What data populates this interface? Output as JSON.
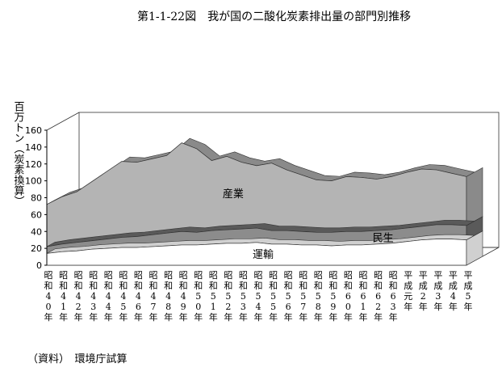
{
  "chart_data": {
    "type": "area",
    "title": "第1-1-22図　我が国の二酸化炭素排出量の部門別推移",
    "ylabel": "百万トン（炭素換算）",
    "xlabel": "",
    "ylim": [
      0,
      160
    ],
    "yticks": [
      0,
      20,
      40,
      60,
      80,
      100,
      120,
      140,
      160
    ],
    "stacked": true,
    "three_d": true,
    "grid": false,
    "categories": [
      "昭和40年",
      "昭和41年",
      "昭和42年",
      "昭和43年",
      "昭和44年",
      "昭和45年",
      "昭和46年",
      "昭和47年",
      "昭和48年",
      "昭和49年",
      "昭和50年",
      "昭和51年",
      "昭和52年",
      "昭和53年",
      "昭和54年",
      "昭和55年",
      "昭和56年",
      "昭和57年",
      "昭和58年",
      "昭和59年",
      "昭和60年",
      "昭和61年",
      "昭和62年",
      "昭和63年",
      "平成元年",
      "平成2年",
      "平成3年",
      "平成4年",
      "平成5年"
    ],
    "series": [
      {
        "name": "運輸",
        "color": "#ffffff",
        "values": [
          14,
          16,
          17,
          19,
          20,
          21,
          21,
          22,
          23,
          24,
          24,
          25,
          26,
          26,
          27,
          25,
          25,
          24,
          24,
          23,
          24,
          24,
          25,
          26,
          28,
          30,
          31,
          31,
          30
        ]
      },
      {
        "name": "民生",
        "color": "#8c8c8c",
        "values": [
          8,
          9,
          10,
          10,
          11,
          12,
          13,
          14,
          15,
          16,
          15,
          16,
          16,
          17,
          17,
          16,
          16,
          16,
          15,
          16,
          16,
          16,
          16,
          16,
          16,
          16,
          17,
          17,
          17
        ]
      },
      {
        "name": "産業",
        "color": "#b4b4b4",
        "values": [
          50,
          56,
          60,
          70,
          80,
          90,
          88,
          90,
          92,
          105,
          99,
          83,
          87,
          79,
          74,
          80,
          72,
          67,
          62,
          61,
          65,
          64,
          61,
          63,
          66,
          68,
          65,
          61,
          58
        ]
      }
    ],
    "source": "（資料）　環境庁試算"
  }
}
